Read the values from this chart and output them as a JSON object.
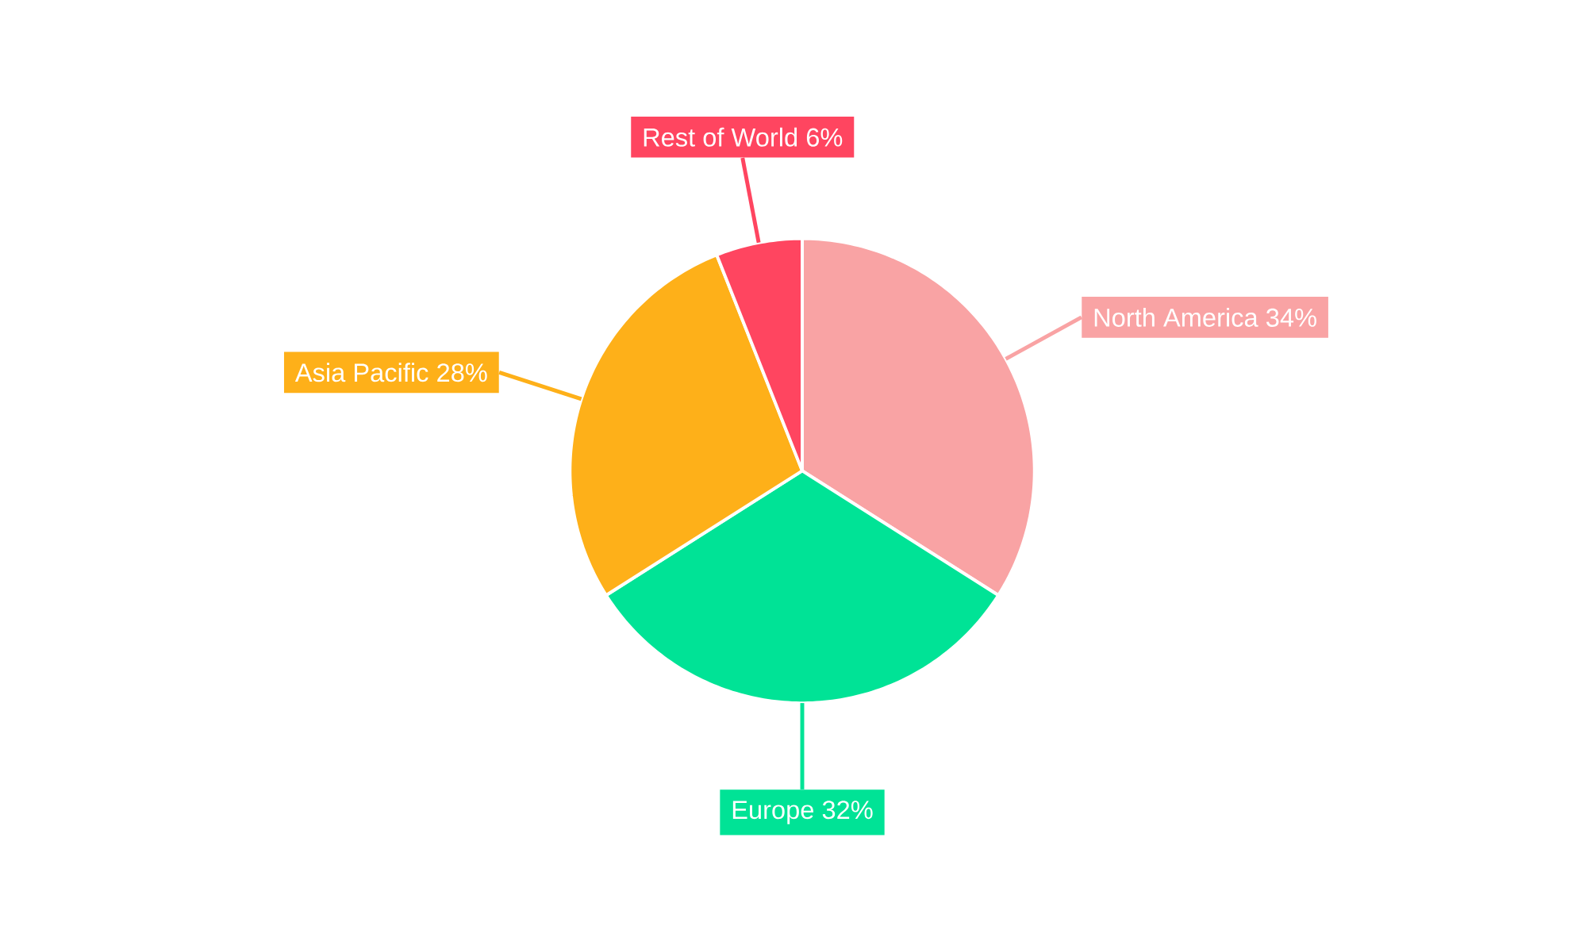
{
  "chart_data": {
    "type": "pie",
    "categories": [
      "North America",
      "Europe",
      "Asia Pacific",
      "Rest of World"
    ],
    "values": [
      34,
      32,
      28,
      6
    ],
    "value_labels": [
      "34%",
      "32%",
      "28%",
      "6%"
    ],
    "colors": [
      "#f9a3a4",
      "#00e396",
      "#feb019",
      "#ff4560"
    ]
  }
}
